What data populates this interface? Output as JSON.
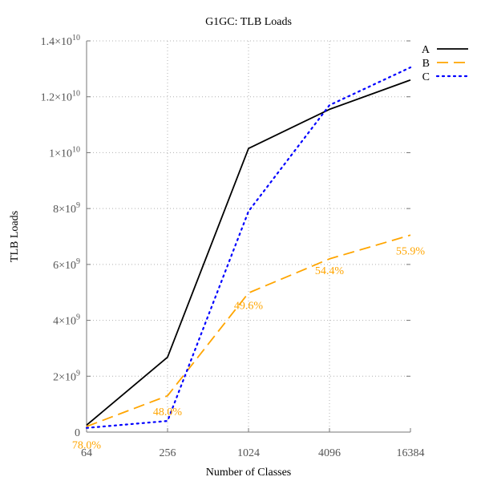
{
  "chart_data": {
    "type": "line",
    "title": "G1GC: TLB Loads",
    "xlabel": "Number of Classes",
    "ylabel": "TLB Loads",
    "x_scale": "log2",
    "x": [
      64,
      256,
      1024,
      4096,
      16384
    ],
    "x_tick_labels": [
      "64",
      "256",
      "1024",
      "4096",
      "16384"
    ],
    "ylim": [
      0,
      14000000000
    ],
    "y_ticks": [
      {
        "value": 0,
        "mantissa": "0",
        "exponent": ""
      },
      {
        "value": 2000000000,
        "mantissa": "2×10",
        "exponent": "9"
      },
      {
        "value": 4000000000,
        "mantissa": "4×10",
        "exponent": "9"
      },
      {
        "value": 6000000000,
        "mantissa": "6×10",
        "exponent": "9"
      },
      {
        "value": 8000000000,
        "mantissa": "8×10",
        "exponent": "9"
      },
      {
        "value": 10000000000,
        "mantissa": "1×10",
        "exponent": "10"
      },
      {
        "value": 12000000000,
        "mantissa": "1.2×10",
        "exponent": "10"
      },
      {
        "value": 14000000000,
        "mantissa": "1.4×10",
        "exponent": "10"
      }
    ],
    "grid": true,
    "legend_position": "top-right",
    "series": [
      {
        "name": "A",
        "color": "#000000",
        "style": "solid",
        "values": [
          250000000,
          2680000000,
          10150000000,
          11550000000,
          12600000000
        ]
      },
      {
        "name": "B",
        "color": "#ffa500",
        "style": "dashed",
        "values": [
          200000000,
          1300000000,
          4980000000,
          6200000000,
          7050000000
        ]
      },
      {
        "name": "C",
        "color": "#0000ff",
        "style": "dotted",
        "values": [
          150000000,
          400000000,
          7900000000,
          11700000000,
          13050000000
        ]
      }
    ],
    "annotations": [
      {
        "text": "78.0%",
        "x": 64,
        "y": -450000000,
        "color": "#ffa500"
      },
      {
        "text": "48.0%",
        "x": 256,
        "y": 750000000,
        "color": "#ffa500"
      },
      {
        "text": "49.6%",
        "x": 1024,
        "y": 4550000000,
        "color": "#ffa500"
      },
      {
        "text": "54.4%",
        "x": 4096,
        "y": 5800000000,
        "color": "#ffa500"
      },
      {
        "text": "55.9%",
        "x": 16384,
        "y": 6500000000,
        "color": "#ffa500"
      }
    ]
  }
}
